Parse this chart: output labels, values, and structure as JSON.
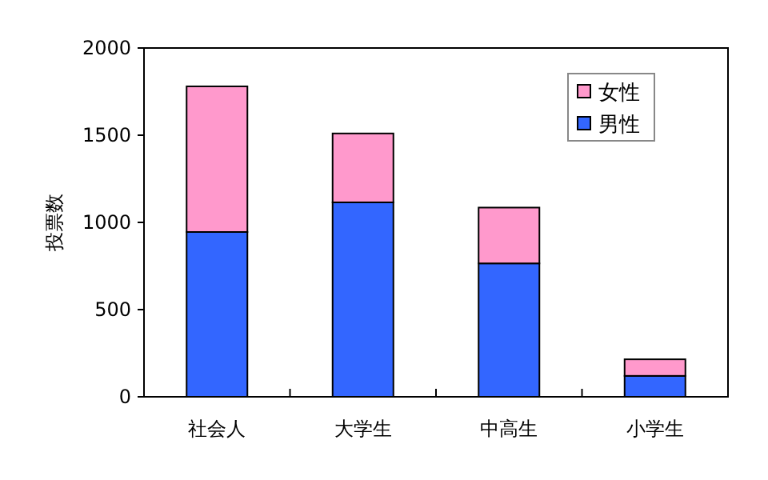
{
  "chart_data": {
    "type": "bar",
    "stacked": true,
    "ylabel": "投票数",
    "categories": [
      "社会人",
      "大学生",
      "中高生",
      "小学生"
    ],
    "series": [
      {
        "name": "男性",
        "color": "#3366ff",
        "values": [
          945,
          1115,
          765,
          120
        ]
      },
      {
        "name": "女性",
        "color": "#ff99cc",
        "values": [
          835,
          395,
          320,
          95
        ]
      }
    ],
    "ylim": [
      0,
      2000
    ],
    "yticks": [
      0,
      500,
      1000,
      1500,
      2000
    ],
    "legend": "top right"
  }
}
